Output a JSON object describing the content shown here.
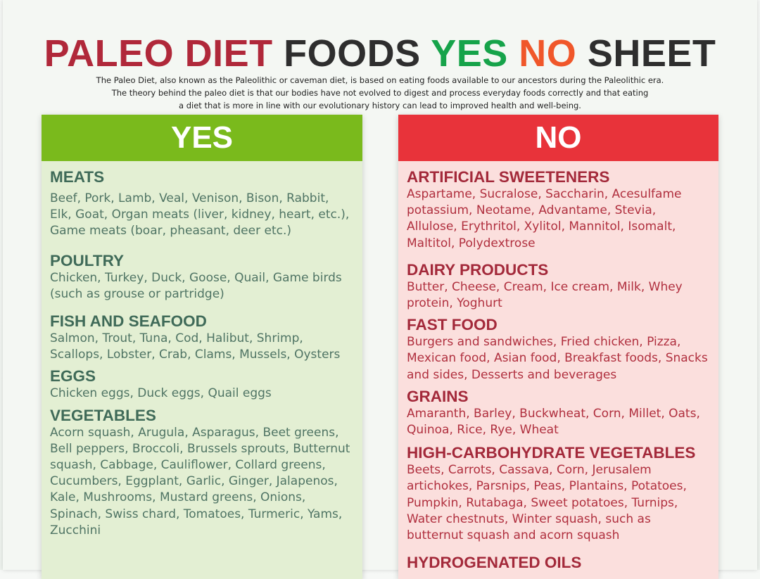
{
  "title": {
    "part1": "PALEO DIET",
    "part2": "FOODS",
    "part3": "YES",
    "part4": "NO",
    "part5": "SHEET"
  },
  "colors": {
    "title_red": "#b0283a",
    "title_dark": "#2e2e2e",
    "title_green": "#16a34a",
    "title_orange": "#f0572a",
    "yes_header": "#7aba1c",
    "no_header": "#e8333a"
  },
  "intro": {
    "line1": "The Paleo Diet, also known as the Paleolithic or caveman diet, is based on eating foods available to our ancestors during the Paleolithic era.",
    "line2": "The theory behind the paleo diet is that our bodies have not evolved to digest and process everyday foods correctly and that eating",
    "line3": "a diet that is more in line with our evolutionary history can lead to improved health and well-being."
  },
  "yes": {
    "heading": "YES",
    "categories": [
      {
        "title": "MEATS",
        "items": "Beef, Pork, Lamb, Veal, Venison, Bison, Rabbit, Elk, Goat, Organ meats (liver, kidney, heart, etc.), Game meats (boar, pheasant, deer etc.)"
      },
      {
        "title": "POULTRY",
        "items": "Chicken, Turkey, Duck, Goose, Quail, Game birds (such as grouse or partridge)"
      },
      {
        "title": "FISH AND SEAFOOD",
        "items": "Salmon, Trout, Tuna, Cod, Halibut, Shrimp, Scallops, Lobster, Crab, Clams, Mussels, Oysters"
      },
      {
        "title": "EGGS",
        "items": "Chicken eggs, Duck eggs, Quail eggs"
      },
      {
        "title": "VEGETABLES",
        "items": "Acorn squash, Arugula, Asparagus, Beet greens, Bell peppers, Broccoli, Brussels sprouts, Butternut squash, Cabbage, Cauliflower, Collard greens, Cucumbers, Eggplant, Garlic, Ginger, Jalapenos, Kale, Mushrooms, Mustard greens, Onions, Spinach, Swiss chard, Tomatoes, Turmeric, Yams, Zucchini"
      }
    ]
  },
  "no": {
    "heading": "NO",
    "categories": [
      {
        "title": "ARTIFICIAL SWEETENERS",
        "items": "Aspartame, Sucralose, Saccharin, Acesulfame potassium, Neotame, Advantame, Stevia, Allulose, Erythritol, Xylitol, Mannitol, Isomalt, Maltitol, Polydextrose"
      },
      {
        "title": "DAIRY PRODUCTS",
        "items": "Butter, Cheese, Cream, Ice cream, Milk, Whey protein, Yoghurt"
      },
      {
        "title": "FAST FOOD",
        "items": "Burgers and sandwiches, Fried chicken, Pizza, Mexican food, Asian food, Breakfast foods, Snacks and sides, Desserts and beverages"
      },
      {
        "title": "GRAINS",
        "items": "Amaranth, Barley, Buckwheat, Corn, Millet, Oats, Quinoa, Rice, Rye, Wheat"
      },
      {
        "title": "HIGH-CARBOHYDRATE VEGETABLES",
        "items": "Beets, Carrots, Cassava, Corn, Jerusalem artichokes, Parsnips, Peas, Plantains, Potatoes, Pumpkin, Rutabaga, Sweet potatoes, Turnips, Water chestnuts, Winter squash, such as butternut squash and acorn squash"
      },
      {
        "title": "HYDROGENATED OILS",
        "items": ""
      }
    ]
  }
}
